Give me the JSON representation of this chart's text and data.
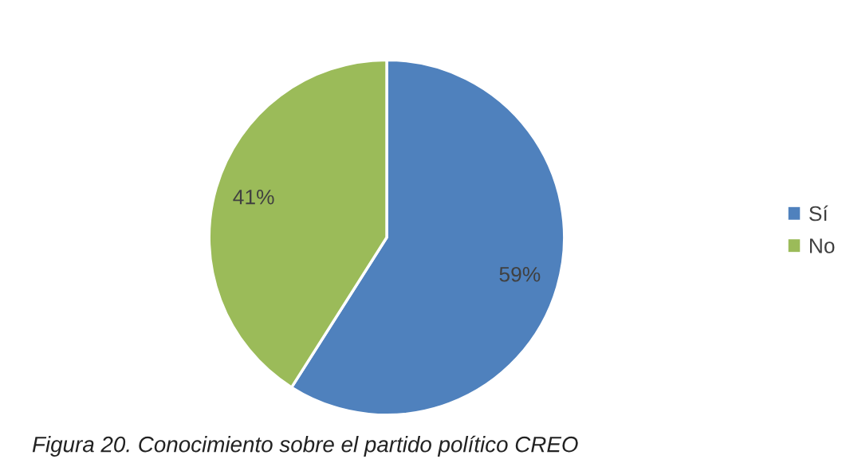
{
  "chart_data": {
    "type": "pie",
    "categories": [
      "Sí",
      "No"
    ],
    "values": [
      59,
      41
    ],
    "colors": [
      "#4f81bd",
      "#9bbb59"
    ],
    "value_labels": [
      "59%",
      "41%"
    ],
    "legend": "right",
    "annotations": [
      "Figura 20. Conocimiento sobre el partido político CREO"
    ]
  }
}
